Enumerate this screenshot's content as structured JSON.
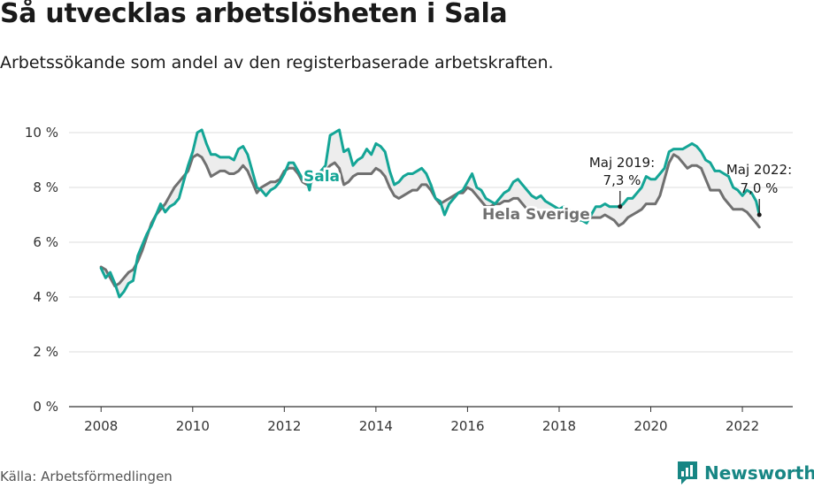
{
  "header": {
    "title": "Så utvecklas arbetslösheten i Sala",
    "subtitle": "Arbetssökande som andel av den registerbaserade arbetskraften."
  },
  "footer": {
    "source": "Källa: Arbetsförmedlingen",
    "brand": "Newsworthy"
  },
  "colors": {
    "sala": "#14a596",
    "sverige": "#707070",
    "grid": "#dddddd",
    "fill": "#ededed"
  },
  "chart_data": {
    "type": "line",
    "title": "Så utvecklas arbetslösheten i Sala",
    "subtitle": "Arbetssökande som andel av den registerbaserade arbetskraften.",
    "xlabel": "",
    "ylabel": "",
    "xlim": [
      2007.3,
      2023.1
    ],
    "ylim": [
      0,
      10
    ],
    "x_ticks": [
      2008,
      2010,
      2012,
      2014,
      2016,
      2018,
      2020,
      2022
    ],
    "x_tick_labels": [
      "2008",
      "2010",
      "2012",
      "2014",
      "2016",
      "2018",
      "2020",
      "2022"
    ],
    "y_ticks": [
      0,
      2,
      4,
      6,
      8,
      10
    ],
    "y_tick_labels": [
      "0 %",
      "2 %",
      "4 %",
      "6 %",
      "8 %",
      "10 %"
    ],
    "grid": true,
    "series": [
      {
        "name": "Sala",
        "points": [
          [
            2008.0,
            5.05
          ],
          [
            2008.1,
            4.7
          ],
          [
            2008.2,
            4.9
          ],
          [
            2008.3,
            4.5
          ],
          [
            2008.4,
            4.0
          ],
          [
            2008.5,
            4.2
          ],
          [
            2008.6,
            4.5
          ],
          [
            2008.7,
            4.6
          ],
          [
            2008.8,
            5.5
          ],
          [
            2008.9,
            5.9
          ],
          [
            2009.0,
            6.3
          ],
          [
            2009.1,
            6.6
          ],
          [
            2009.2,
            7.0
          ],
          [
            2009.3,
            7.4
          ],
          [
            2009.4,
            7.1
          ],
          [
            2009.5,
            7.3
          ],
          [
            2009.6,
            7.4
          ],
          [
            2009.7,
            7.6
          ],
          [
            2009.8,
            8.2
          ],
          [
            2009.9,
            8.8
          ],
          [
            2010.0,
            9.3
          ],
          [
            2010.1,
            10.0
          ],
          [
            2010.2,
            10.1
          ],
          [
            2010.3,
            9.6
          ],
          [
            2010.4,
            9.2
          ],
          [
            2010.5,
            9.2
          ],
          [
            2010.6,
            9.1
          ],
          [
            2010.7,
            9.1
          ],
          [
            2010.8,
            9.1
          ],
          [
            2010.9,
            9.0
          ],
          [
            2011.0,
            9.4
          ],
          [
            2011.1,
            9.5
          ],
          [
            2011.2,
            9.2
          ],
          [
            2011.3,
            8.6
          ],
          [
            2011.4,
            8.0
          ],
          [
            2011.5,
            7.9
          ],
          [
            2011.6,
            7.7
          ],
          [
            2011.7,
            7.9
          ],
          [
            2011.8,
            8.0
          ],
          [
            2011.9,
            8.2
          ],
          [
            2012.0,
            8.5
          ],
          [
            2012.1,
            8.9
          ],
          [
            2012.2,
            8.9
          ],
          [
            2012.3,
            8.6
          ],
          [
            2012.4,
            8.3
          ],
          [
            2012.5,
            8.2
          ],
          [
            2012.55,
            7.9
          ],
          [
            2012.6,
            8.4
          ],
          [
            2012.7,
            8.4
          ],
          [
            2012.8,
            8.6
          ],
          [
            2012.9,
            8.8
          ],
          [
            2013.0,
            9.9
          ],
          [
            2013.1,
            10.0
          ],
          [
            2013.2,
            10.1
          ],
          [
            2013.3,
            9.3
          ],
          [
            2013.4,
            9.4
          ],
          [
            2013.5,
            8.8
          ],
          [
            2013.6,
            9.0
          ],
          [
            2013.7,
            9.1
          ],
          [
            2013.8,
            9.4
          ],
          [
            2013.9,
            9.2
          ],
          [
            2014.0,
            9.6
          ],
          [
            2014.1,
            9.5
          ],
          [
            2014.2,
            9.3
          ],
          [
            2014.3,
            8.6
          ],
          [
            2014.4,
            8.1
          ],
          [
            2014.5,
            8.2
          ],
          [
            2014.6,
            8.4
          ],
          [
            2014.7,
            8.5
          ],
          [
            2014.8,
            8.5
          ],
          [
            2014.9,
            8.6
          ],
          [
            2015.0,
            8.7
          ],
          [
            2015.1,
            8.5
          ],
          [
            2015.2,
            8.1
          ],
          [
            2015.3,
            7.6
          ],
          [
            2015.4,
            7.5
          ],
          [
            2015.5,
            7.0
          ],
          [
            2015.6,
            7.4
          ],
          [
            2015.7,
            7.6
          ],
          [
            2015.8,
            7.8
          ],
          [
            2015.9,
            7.9
          ],
          [
            2016.0,
            8.2
          ],
          [
            2016.1,
            8.5
          ],
          [
            2016.2,
            8.0
          ],
          [
            2016.3,
            7.9
          ],
          [
            2016.4,
            7.6
          ],
          [
            2016.5,
            7.5
          ],
          [
            2016.6,
            7.4
          ],
          [
            2016.7,
            7.6
          ],
          [
            2016.8,
            7.8
          ],
          [
            2016.9,
            7.9
          ],
          [
            2017.0,
            8.2
          ],
          [
            2017.1,
            8.3
          ],
          [
            2017.2,
            8.1
          ],
          [
            2017.3,
            7.9
          ],
          [
            2017.4,
            7.7
          ],
          [
            2017.5,
            7.6
          ],
          [
            2017.6,
            7.7
          ],
          [
            2017.7,
            7.5
          ],
          [
            2017.8,
            7.4
          ],
          [
            2017.9,
            7.3
          ],
          [
            2018.0,
            7.2
          ],
          [
            2018.1,
            7.3
          ],
          [
            2018.2,
            7.2
          ],
          [
            2018.3,
            7.0
          ],
          [
            2018.4,
            6.8
          ],
          [
            2018.5,
            6.8
          ],
          [
            2018.6,
            6.7
          ],
          [
            2018.7,
            7.0
          ],
          [
            2018.8,
            7.3
          ],
          [
            2018.9,
            7.3
          ],
          [
            2019.0,
            7.4
          ],
          [
            2019.1,
            7.3
          ],
          [
            2019.2,
            7.3
          ],
          [
            2019.33,
            7.3
          ],
          [
            2019.4,
            7.4
          ],
          [
            2019.5,
            7.6
          ],
          [
            2019.6,
            7.6
          ],
          [
            2019.7,
            7.8
          ],
          [
            2019.8,
            8.0
          ],
          [
            2019.9,
            8.4
          ],
          [
            2020.0,
            8.3
          ],
          [
            2020.1,
            8.3
          ],
          [
            2020.2,
            8.5
          ],
          [
            2020.3,
            8.7
          ],
          [
            2020.4,
            9.3
          ],
          [
            2020.5,
            9.4
          ],
          [
            2020.6,
            9.4
          ],
          [
            2020.7,
            9.4
          ],
          [
            2020.8,
            9.5
          ],
          [
            2020.9,
            9.6
          ],
          [
            2021.0,
            9.5
          ],
          [
            2021.1,
            9.3
          ],
          [
            2021.2,
            9.0
          ],
          [
            2021.3,
            8.9
          ],
          [
            2021.4,
            8.6
          ],
          [
            2021.5,
            8.6
          ],
          [
            2021.6,
            8.5
          ],
          [
            2021.7,
            8.4
          ],
          [
            2021.8,
            8.0
          ],
          [
            2021.9,
            7.9
          ],
          [
            2022.0,
            7.7
          ],
          [
            2022.1,
            7.9
          ],
          [
            2022.2,
            7.8
          ],
          [
            2022.3,
            7.5
          ],
          [
            2022.37,
            7.0
          ]
        ]
      },
      {
        "name": "Hela Sverige",
        "points": [
          [
            2008.0,
            5.1
          ],
          [
            2008.1,
            5.0
          ],
          [
            2008.2,
            4.7
          ],
          [
            2008.3,
            4.4
          ],
          [
            2008.4,
            4.5
          ],
          [
            2008.5,
            4.7
          ],
          [
            2008.6,
            4.9
          ],
          [
            2008.7,
            5.0
          ],
          [
            2008.8,
            5.3
          ],
          [
            2008.9,
            5.7
          ],
          [
            2009.0,
            6.2
          ],
          [
            2009.1,
            6.7
          ],
          [
            2009.2,
            7.0
          ],
          [
            2009.3,
            7.2
          ],
          [
            2009.4,
            7.4
          ],
          [
            2009.5,
            7.7
          ],
          [
            2009.6,
            8.0
          ],
          [
            2009.7,
            8.2
          ],
          [
            2009.8,
            8.4
          ],
          [
            2009.9,
            8.6
          ],
          [
            2010.0,
            9.1
          ],
          [
            2010.1,
            9.2
          ],
          [
            2010.2,
            9.1
          ],
          [
            2010.3,
            8.8
          ],
          [
            2010.4,
            8.4
          ],
          [
            2010.5,
            8.5
          ],
          [
            2010.6,
            8.6
          ],
          [
            2010.7,
            8.6
          ],
          [
            2010.8,
            8.5
          ],
          [
            2010.9,
            8.5
          ],
          [
            2011.0,
            8.6
          ],
          [
            2011.1,
            8.8
          ],
          [
            2011.2,
            8.6
          ],
          [
            2011.3,
            8.2
          ],
          [
            2011.4,
            7.8
          ],
          [
            2011.5,
            8.0
          ],
          [
            2011.6,
            8.1
          ],
          [
            2011.7,
            8.2
          ],
          [
            2011.8,
            8.2
          ],
          [
            2011.9,
            8.3
          ],
          [
            2012.0,
            8.6
          ],
          [
            2012.1,
            8.7
          ],
          [
            2012.2,
            8.7
          ],
          [
            2012.3,
            8.5
          ],
          [
            2012.4,
            8.2
          ],
          [
            2012.5,
            8.1
          ],
          [
            2012.6,
            8.2
          ],
          [
            2012.7,
            8.4
          ],
          [
            2012.8,
            8.5
          ],
          [
            2012.9,
            8.6
          ],
          [
            2013.0,
            8.8
          ],
          [
            2013.1,
            8.9
          ],
          [
            2013.2,
            8.7
          ],
          [
            2013.3,
            8.1
          ],
          [
            2013.4,
            8.2
          ],
          [
            2013.5,
            8.4
          ],
          [
            2013.6,
            8.5
          ],
          [
            2013.7,
            8.5
          ],
          [
            2013.8,
            8.5
          ],
          [
            2013.9,
            8.5
          ],
          [
            2014.0,
            8.7
          ],
          [
            2014.1,
            8.6
          ],
          [
            2014.2,
            8.4
          ],
          [
            2014.3,
            8.0
          ],
          [
            2014.4,
            7.7
          ],
          [
            2014.5,
            7.6
          ],
          [
            2014.6,
            7.7
          ],
          [
            2014.7,
            7.8
          ],
          [
            2014.8,
            7.9
          ],
          [
            2014.9,
            7.9
          ],
          [
            2015.0,
            8.1
          ],
          [
            2015.1,
            8.1
          ],
          [
            2015.2,
            7.9
          ],
          [
            2015.3,
            7.6
          ],
          [
            2015.4,
            7.4
          ],
          [
            2015.5,
            7.5
          ],
          [
            2015.6,
            7.6
          ],
          [
            2015.7,
            7.7
          ],
          [
            2015.8,
            7.8
          ],
          [
            2015.9,
            7.8
          ],
          [
            2016.0,
            8.0
          ],
          [
            2016.1,
            7.9
          ],
          [
            2016.2,
            7.7
          ],
          [
            2016.3,
            7.5
          ],
          [
            2016.4,
            7.3
          ],
          [
            2016.5,
            7.3
          ],
          [
            2016.6,
            7.4
          ],
          [
            2016.7,
            7.4
          ],
          [
            2016.8,
            7.5
          ],
          [
            2016.9,
            7.5
          ],
          [
            2017.0,
            7.6
          ],
          [
            2017.1,
            7.6
          ],
          [
            2017.2,
            7.4
          ],
          [
            2017.3,
            7.2
          ],
          [
            2017.4,
            7.0
          ],
          [
            2017.5,
            7.0
          ],
          [
            2017.6,
            7.0
          ],
          [
            2017.7,
            7.1
          ],
          [
            2017.8,
            7.1
          ],
          [
            2017.9,
            7.1
          ],
          [
            2018.0,
            7.2
          ],
          [
            2018.1,
            7.2
          ],
          [
            2018.2,
            7.1
          ],
          [
            2018.3,
            6.9
          ],
          [
            2018.4,
            6.8
          ],
          [
            2018.5,
            6.9
          ],
          [
            2018.6,
            6.9
          ],
          [
            2018.7,
            6.9
          ],
          [
            2018.8,
            6.9
          ],
          [
            2018.9,
            6.9
          ],
          [
            2019.0,
            7.0
          ],
          [
            2019.1,
            6.9
          ],
          [
            2019.2,
            6.8
          ],
          [
            2019.3,
            6.6
          ],
          [
            2019.4,
            6.7
          ],
          [
            2019.5,
            6.9
          ],
          [
            2019.6,
            7.0
          ],
          [
            2019.7,
            7.1
          ],
          [
            2019.8,
            7.2
          ],
          [
            2019.9,
            7.4
          ],
          [
            2020.0,
            7.4
          ],
          [
            2020.1,
            7.4
          ],
          [
            2020.2,
            7.7
          ],
          [
            2020.3,
            8.3
          ],
          [
            2020.4,
            8.9
          ],
          [
            2020.5,
            9.2
          ],
          [
            2020.6,
            9.1
          ],
          [
            2020.7,
            8.9
          ],
          [
            2020.8,
            8.7
          ],
          [
            2020.9,
            8.8
          ],
          [
            2021.0,
            8.8
          ],
          [
            2021.1,
            8.7
          ],
          [
            2021.2,
            8.3
          ],
          [
            2021.3,
            7.9
          ],
          [
            2021.4,
            7.9
          ],
          [
            2021.5,
            7.9
          ],
          [
            2021.6,
            7.6
          ],
          [
            2021.7,
            7.4
          ],
          [
            2021.8,
            7.2
          ],
          [
            2021.9,
            7.2
          ],
          [
            2022.0,
            7.2
          ],
          [
            2022.1,
            7.1
          ],
          [
            2022.2,
            6.9
          ],
          [
            2022.3,
            6.7
          ],
          [
            2022.37,
            6.55
          ]
        ]
      }
    ],
    "annotations": [
      {
        "x": 2019.33,
        "y": 7.3,
        "line1": "Maj 2019:",
        "line2": "7,3 %"
      },
      {
        "x": 2022.37,
        "y": 7.0,
        "line1": "Maj 2022:",
        "line2": "7,0 %"
      }
    ]
  }
}
